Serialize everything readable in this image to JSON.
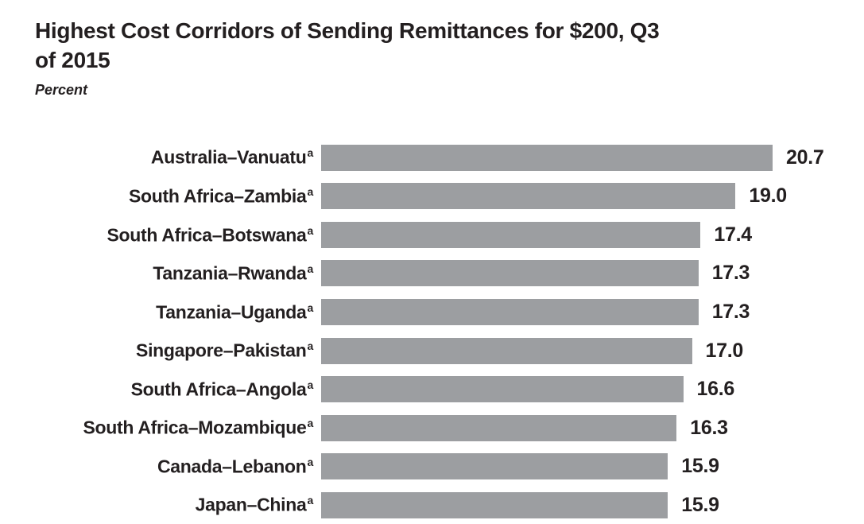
{
  "chart_data": {
    "type": "bar",
    "orientation": "horizontal",
    "title": "Highest Cost Corridors of Sending Remittances for $200, Q3 of 2015",
    "title_lines": [
      "Highest Cost Corridors of Sending Remittances for $200, Q3",
      "of 2015"
    ],
    "subtitle": "Percent",
    "ylabel": "",
    "xlabel": "",
    "categories": [
      "Australia–Vanuatu",
      "South Africa–Zambia",
      "South Africa–Botswana",
      "Tanzania–Rwanda",
      "Tanzania–Uganda",
      "Singapore–Pakistan",
      "South Africa–Angola",
      "South Africa–Mozambique",
      "Canada–Lebanon",
      "Japan–China"
    ],
    "footnote_marker": "a",
    "values": [
      20.7,
      19.0,
      17.4,
      17.3,
      17.3,
      17.0,
      16.6,
      16.3,
      15.9,
      15.9
    ],
    "value_labels": [
      "20.7",
      "19.0",
      "17.4",
      "17.3",
      "17.3",
      "17.0",
      "16.6",
      "16.3",
      "15.9",
      "15.9"
    ],
    "xlim": [
      0,
      20.7
    ],
    "grid": false,
    "legend": false,
    "bar_color": "#9c9ea1",
    "text_color": "#231f20"
  }
}
